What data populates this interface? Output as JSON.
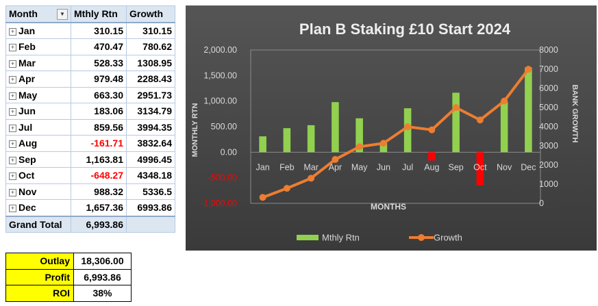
{
  "pivot": {
    "headers": {
      "month": "Month",
      "rtn": "Mthly Rtn",
      "growth": "Growth"
    },
    "rows": [
      {
        "month": "Jan",
        "rtn": "310.15",
        "growth": "310.15"
      },
      {
        "month": "Feb",
        "rtn": "470.47",
        "growth": "780.62"
      },
      {
        "month": "Mar",
        "rtn": "528.33",
        "growth": "1308.95"
      },
      {
        "month": "Apr",
        "rtn": "979.48",
        "growth": "2288.43"
      },
      {
        "month": "May",
        "rtn": "663.30",
        "growth": "2951.73"
      },
      {
        "month": "Jun",
        "rtn": "183.06",
        "growth": "3134.79"
      },
      {
        "month": "Jul",
        "rtn": "859.56",
        "growth": "3994.35"
      },
      {
        "month": "Aug",
        "rtn": "-161.71",
        "growth": "3832.64"
      },
      {
        "month": "Sep",
        "rtn": "1,163.81",
        "growth": "4996.45"
      },
      {
        "month": "Oct",
        "rtn": "-648.27",
        "growth": "4348.18"
      },
      {
        "month": "Nov",
        "rtn": "988.32",
        "growth": "5336.5"
      },
      {
        "month": "Dec",
        "rtn": "1,657.36",
        "growth": "6993.86"
      }
    ],
    "total_label": "Grand Total",
    "total_value": "6,993.86"
  },
  "summary": {
    "rows": [
      {
        "label": "Outlay",
        "value": "18,306.00"
      },
      {
        "label": "Profit",
        "value": "6,993.86"
      },
      {
        "label": "ROI",
        "value": "38%"
      }
    ]
  },
  "chart_data": {
    "type": "bar",
    "combo": "bar + line (secondary axis)",
    "title": "Plan B Staking £10 Start 2024",
    "xlabel": "MONTHS",
    "ylabel": "MONTHLY RTN",
    "y2label": "BANK GROWTH",
    "categories": [
      "Jan",
      "Feb",
      "Mar",
      "Apr",
      "May",
      "Jun",
      "Jul",
      "Aug",
      "Sep",
      "Oct",
      "Nov",
      "Dec"
    ],
    "ylim": [
      -1000,
      2000
    ],
    "yticks": [
      "-1,000.00",
      "-500.00",
      "0.00",
      "500.00",
      "1,000.00",
      "1,500.00",
      "2,000.00"
    ],
    "y2lim": [
      0,
      8000
    ],
    "y2ticks": [
      "0",
      "1000",
      "2000",
      "3000",
      "4000",
      "5000",
      "6000",
      "7000",
      "8000"
    ],
    "series": [
      {
        "name": "Mthly Rtn",
        "type": "bar",
        "axis": "primary",
        "values": [
          310.15,
          470.47,
          528.33,
          979.48,
          663.3,
          183.06,
          859.56,
          -161.71,
          1163.81,
          -648.27,
          988.32,
          1657.36
        ]
      },
      {
        "name": "Growth",
        "type": "line",
        "axis": "secondary",
        "values": [
          310.15,
          780.62,
          1308.95,
          2288.43,
          2951.73,
          3134.79,
          3994.35,
          3832.64,
          4996.45,
          4348.18,
          5336.5,
          6993.86
        ]
      }
    ],
    "legend": "bottom",
    "grid": false,
    "colors": {
      "background": "#474747",
      "bar_positive": "#92d050",
      "bar_negative": "#ff0000",
      "line": "#ed7d31",
      "text": "#d9d9d9",
      "negative_tick": "#ff0000"
    }
  }
}
